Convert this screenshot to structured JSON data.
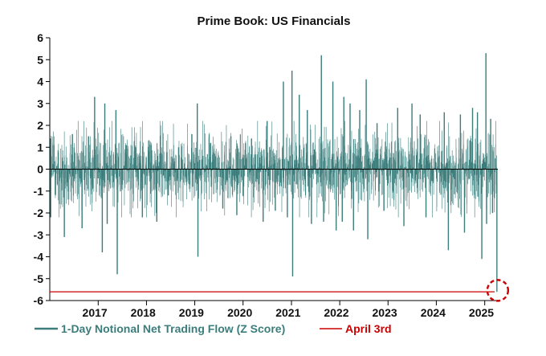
{
  "chart_data": {
    "type": "bar",
    "title": "Prime Book: US Financials",
    "xlabel": "",
    "ylabel": "",
    "x_range": [
      "2016-01-01",
      "2025-04-10"
    ],
    "ylim": [
      -6,
      6
    ],
    "y_ticks": [
      "6",
      "5",
      "4",
      "3",
      "2",
      "1",
      "0",
      "-1",
      "-2",
      "-3",
      "-4",
      "-5",
      "-6"
    ],
    "x_ticks": [
      "2017",
      "2018",
      "2019",
      "2020",
      "2021",
      "2022",
      "2023",
      "2024",
      "2025"
    ],
    "grid": false,
    "legend_position": "bottom",
    "series": [
      {
        "name": "1-Day Notional Net Trading Flow (Z Score)",
        "color": "#3a7d7b",
        "values": [
          {
            "date": "2016-01-05",
            "value": 1.4
          },
          {
            "date": "2016-01-08",
            "value": -2.2
          },
          {
            "date": "2016-02-01",
            "value": 1.1
          },
          {
            "date": "2016-04-20",
            "value": -3.1
          },
          {
            "date": "2016-06-20",
            "value": 1.6
          },
          {
            "date": "2016-09-01",
            "value": -2.7
          },
          {
            "date": "2016-10-20",
            "value": 1.5
          },
          {
            "date": "2016-12-05",
            "value": 3.3
          },
          {
            "date": "2017-02-01",
            "value": -3.8
          },
          {
            "date": "2017-02-20",
            "value": 3.0
          },
          {
            "date": "2017-03-10",
            "value": -2.5
          },
          {
            "date": "2017-05-15",
            "value": 2.7
          },
          {
            "date": "2017-05-25",
            "value": -4.8
          },
          {
            "date": "2017-08-01",
            "value": 1.1
          },
          {
            "date": "2017-10-10",
            "value": 1.0
          },
          {
            "date": "2017-12-01",
            "value": -2.2
          },
          {
            "date": "2018-02-05",
            "value": 1.1
          },
          {
            "date": "2018-03-20",
            "value": -2.4
          },
          {
            "date": "2018-06-15",
            "value": -1.2
          },
          {
            "date": "2018-09-01",
            "value": 1.0
          },
          {
            "date": "2018-12-10",
            "value": 1.6
          },
          {
            "date": "2019-01-20",
            "value": 3.0
          },
          {
            "date": "2019-01-25",
            "value": -4.0
          },
          {
            "date": "2019-05-01",
            "value": 1.2
          },
          {
            "date": "2019-08-01",
            "value": -1.8
          },
          {
            "date": "2019-10-01",
            "value": 1.5
          },
          {
            "date": "2019-11-15",
            "value": -2.1
          },
          {
            "date": "2020-01-20",
            "value": 1.2
          },
          {
            "date": "2020-03-05",
            "value": 1.4
          },
          {
            "date": "2020-06-01",
            "value": -2.4
          },
          {
            "date": "2020-07-01",
            "value": 2.2
          },
          {
            "date": "2020-09-01",
            "value": -1.9
          },
          {
            "date": "2020-11-01",
            "value": 4.0
          },
          {
            "date": "2020-12-01",
            "value": -2.2
          },
          {
            "date": "2021-01-05",
            "value": 4.5
          },
          {
            "date": "2021-01-10",
            "value": -4.9
          },
          {
            "date": "2021-03-01",
            "value": 3.4
          },
          {
            "date": "2021-05-01",
            "value": 2.7
          },
          {
            "date": "2021-06-01",
            "value": -2.5
          },
          {
            "date": "2021-08-15",
            "value": 5.2
          },
          {
            "date": "2021-09-01",
            "value": -2.4
          },
          {
            "date": "2021-11-10",
            "value": 4.0
          },
          {
            "date": "2021-12-05",
            "value": -2.8
          },
          {
            "date": "2022-01-20",
            "value": -2.4
          },
          {
            "date": "2022-02-01",
            "value": 3.3
          },
          {
            "date": "2022-03-20",
            "value": 3.0
          },
          {
            "date": "2022-04-15",
            "value": -2.8
          },
          {
            "date": "2022-06-01",
            "value": 2.7
          },
          {
            "date": "2022-07-20",
            "value": 4.1
          },
          {
            "date": "2022-08-01",
            "value": -3.2
          },
          {
            "date": "2022-10-10",
            "value": 2.1
          },
          {
            "date": "2022-12-01",
            "value": -1.9
          },
          {
            "date": "2023-03-15",
            "value": 2.8
          },
          {
            "date": "2023-05-01",
            "value": -2.6
          },
          {
            "date": "2023-07-01",
            "value": 3.0
          },
          {
            "date": "2023-09-01",
            "value": 2.5
          },
          {
            "date": "2023-10-15",
            "value": -2.2
          },
          {
            "date": "2024-03-01",
            "value": 2.6
          },
          {
            "date": "2024-04-01",
            "value": -3.7
          },
          {
            "date": "2024-07-01",
            "value": 2.5
          },
          {
            "date": "2024-08-01",
            "value": -2.9
          },
          {
            "date": "2024-10-01",
            "value": 2.8
          },
          {
            "date": "2024-11-07",
            "value": 2.6
          },
          {
            "date": "2024-12-10",
            "value": -4.1
          },
          {
            "date": "2025-01-10",
            "value": 5.3
          },
          {
            "date": "2025-01-15",
            "value": -2.5
          },
          {
            "date": "2025-02-15",
            "value": 2.3
          },
          {
            "date": "2025-03-01",
            "value": -2.0
          },
          {
            "date": "2025-04-03",
            "value": -5.6
          }
        ]
      }
    ],
    "reference_lines": [
      {
        "name": "April 3rd",
        "value": -5.6,
        "color": "#cc0000"
      }
    ],
    "annotations": [
      {
        "type": "dashed-circle",
        "date": "2025-04-03",
        "value": -5.5,
        "color": "#cc0000"
      }
    ]
  }
}
